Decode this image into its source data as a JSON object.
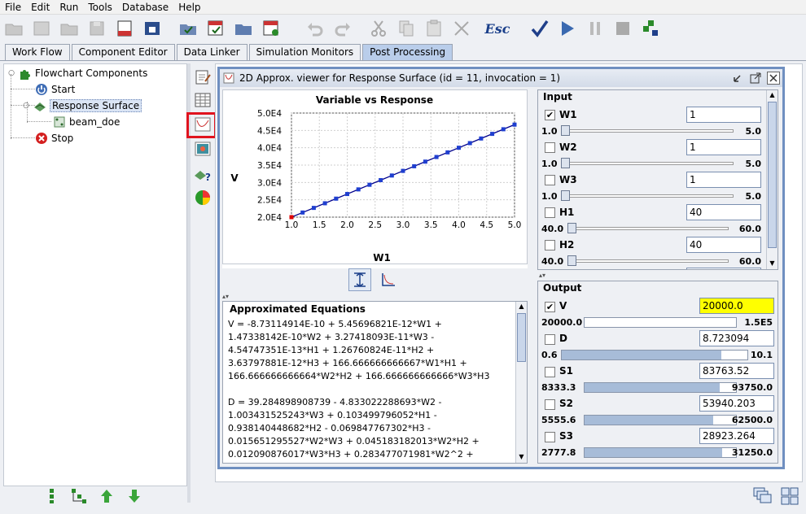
{
  "menu": [
    "File",
    "Edit",
    "Run",
    "Tools",
    "Database",
    "Help"
  ],
  "toolbar": {
    "esc_label": "Esc"
  },
  "tabs": [
    {
      "label": "Work Flow",
      "active": false
    },
    {
      "label": "Component Editor",
      "active": false
    },
    {
      "label": "Data Linker",
      "active": false
    },
    {
      "label": "Simulation Monitors",
      "active": false
    },
    {
      "label": "Post Processing",
      "active": true
    }
  ],
  "tree": {
    "root": "Flowchart Components",
    "start": "Start",
    "response_surface": "Response Surface",
    "beam_doe": "beam_doe",
    "stop": "Stop"
  },
  "frame": {
    "title": "2D Approx. viewer for Response Surface (id = 11, invocation = 1)"
  },
  "chart_data": {
    "type": "line",
    "title": "Variable vs Response",
    "xlabel": "W1",
    "ylabel": "V",
    "xlim": [
      1.0,
      5.0
    ],
    "ylim": [
      20000,
      50000
    ],
    "x_ticks": [
      "1.0",
      "1.5",
      "2.0",
      "2.5",
      "3.0",
      "3.5",
      "4.0",
      "4.5",
      "5.0"
    ],
    "y_ticks": [
      "2.0E4",
      "2.5E4",
      "3.0E4",
      "3.5E4",
      "4.0E4",
      "4.5E4",
      "5.0E4"
    ],
    "x": [
      1.0,
      1.2,
      1.4,
      1.6,
      1.8,
      2.0,
      2.2,
      2.4,
      2.6,
      2.8,
      3.0,
      3.2,
      3.4,
      3.6,
      3.8,
      4.0,
      4.2,
      4.4,
      4.6,
      4.8,
      5.0
    ],
    "y": [
      20000,
      21333,
      22667,
      24000,
      25333,
      26667,
      28000,
      29333,
      30667,
      32000,
      33333,
      34667,
      36000,
      37333,
      38667,
      40000,
      41333,
      42667,
      44000,
      45333,
      46667
    ],
    "grid": true,
    "line_color": "#00008b",
    "point_color": "#1f3fd0",
    "current_point_color": "#e00000"
  },
  "equations": {
    "title": "Approximated Equations",
    "lines": [
      "V = -8.73114914E-10 + 5.45696821E-12*W1 +",
      "1.47338142E-10*W2 + 3.27418093E-11*W3 -",
      "4.54747351E-13*H1 + 1.26760824E-11*H2 +",
      "3.63797881E-12*H3 + 166.666666666667*W1*H1 +",
      "166.666666666664*W2*H2 + 166.666666666666*W3*H3",
      "",
      "D = 39.284898908739 - 4.833022288693*W2 -",
      "1.003431525243*W3 + 0.103499796052*H1 -",
      "0.938140448682*H2 - 0.069847767302*H3 -",
      "0.015651295527*W2*W3 + 0.045183182013*W2*H2 +",
      "0.012090876017*W3*H3 + 0.283477071981*W2^2 +"
    ]
  },
  "input": {
    "title": "Input",
    "vars": [
      {
        "name": "W1",
        "checked": true,
        "value": "1",
        "min": "1.0",
        "max": "5.0",
        "pos": 0.0
      },
      {
        "name": "W2",
        "checked": false,
        "value": "1",
        "min": "1.0",
        "max": "5.0",
        "pos": 0.0
      },
      {
        "name": "W3",
        "checked": false,
        "value": "1",
        "min": "1.0",
        "max": "5.0",
        "pos": 0.0
      },
      {
        "name": "H1",
        "checked": false,
        "value": "40",
        "min": "40.0",
        "max": "60.0",
        "pos": 0.0
      },
      {
        "name": "H2",
        "checked": false,
        "value": "40",
        "min": "40.0",
        "max": "60.0",
        "pos": 0.0
      }
    ]
  },
  "output": {
    "title": "Output",
    "vars": [
      {
        "name": "V",
        "checked": true,
        "value": "20000.0",
        "min": "20000.0",
        "max": "1.5E5",
        "fill": 0.0,
        "highlight": true
      },
      {
        "name": "D",
        "checked": false,
        "value": "8.723094",
        "min": "0.6",
        "max": "10.1",
        "fill": 0.86,
        "highlight": false
      },
      {
        "name": "S1",
        "checked": false,
        "value": "83763.52",
        "min": "8333.3",
        "max": "93750.0",
        "fill": 0.89,
        "highlight": false
      },
      {
        "name": "S2",
        "checked": false,
        "value": "53940.203",
        "min": "5555.6",
        "max": "62500.0",
        "fill": 0.85,
        "highlight": false
      },
      {
        "name": "S3",
        "checked": false,
        "value": "28923.264",
        "min": "2777.8",
        "max": "31250.0",
        "fill": 0.91,
        "highlight": false
      }
    ]
  }
}
